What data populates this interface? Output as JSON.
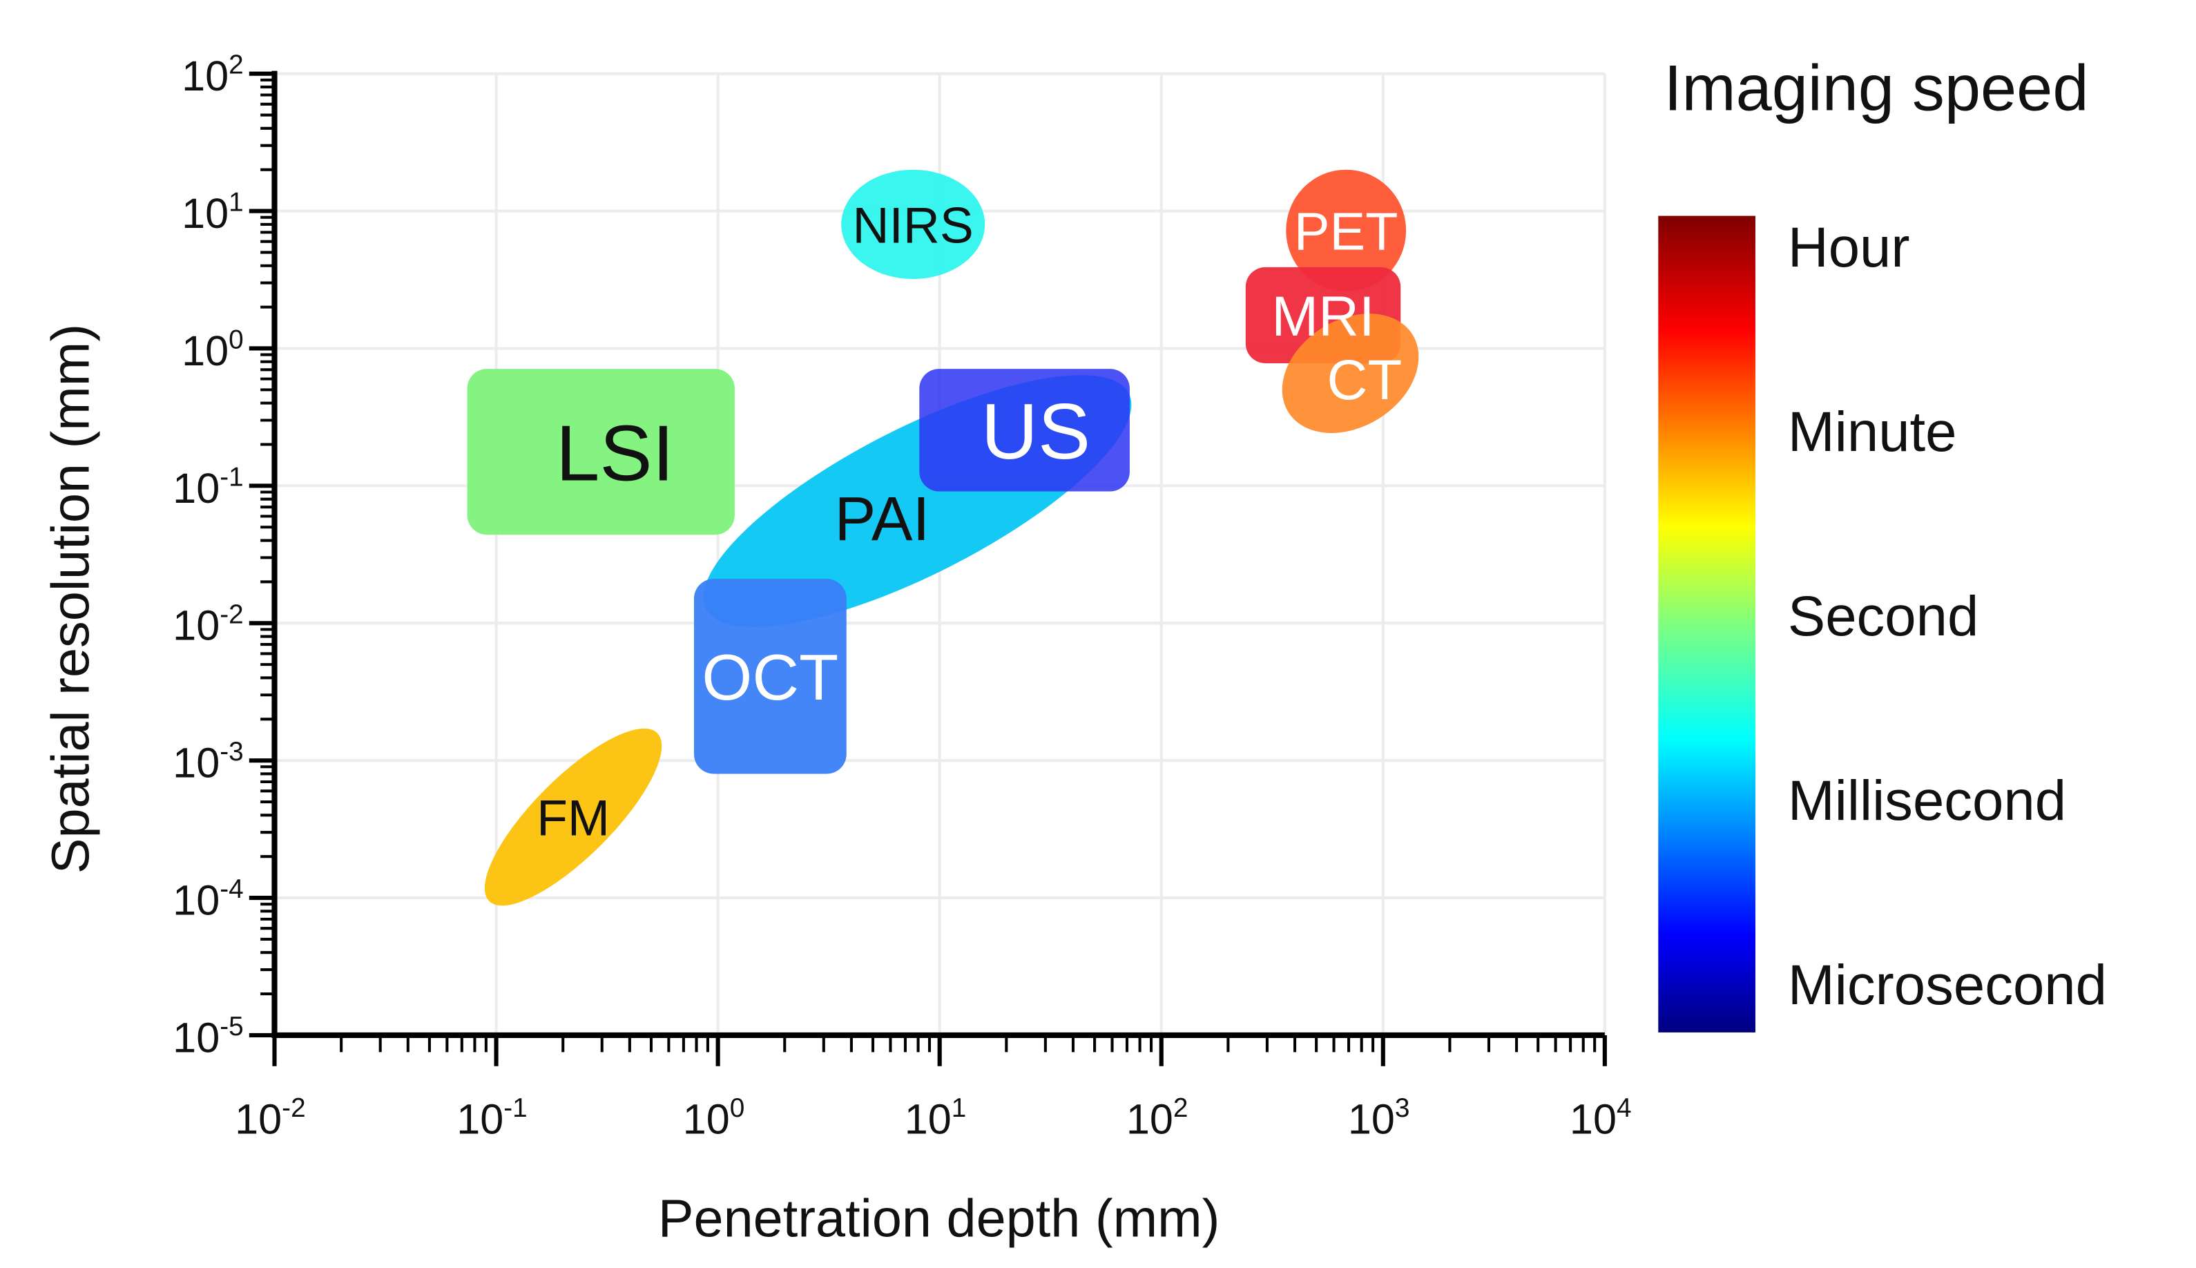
{
  "chart_data": {
    "type": "scatter",
    "title": "",
    "xlabel": "Penetration depth (mm)",
    "ylabel": "Spatial resolution (mm)",
    "xscale": "log",
    "yscale": "log",
    "xlim": [
      0.01,
      10000
    ],
    "ylim": [
      1e-05,
      100
    ],
    "grid": true,
    "x_ticks": [
      {
        "base": "10",
        "exp": "-2"
      },
      {
        "base": "10",
        "exp": "-1"
      },
      {
        "base": "10",
        "exp": "0"
      },
      {
        "base": "10",
        "exp": "1"
      },
      {
        "base": "10",
        "exp": "2"
      },
      {
        "base": "10",
        "exp": "3"
      },
      {
        "base": "10",
        "exp": "4"
      }
    ],
    "y_ticks": [
      {
        "base": "10",
        "exp": "2"
      },
      {
        "base": "10",
        "exp": "1"
      },
      {
        "base": "10",
        "exp": "0"
      },
      {
        "base": "10",
        "exp": "-1"
      },
      {
        "base": "10",
        "exp": "-2"
      },
      {
        "base": "10",
        "exp": "-3"
      },
      {
        "base": "10",
        "exp": "-4"
      },
      {
        "base": "10",
        "exp": "-5"
      }
    ],
    "regions": [
      {
        "label": "LSI",
        "shape": "rect",
        "x_range": [
          0.074,
          1.19
        ],
        "y_range": [
          0.044,
          0.71
        ],
        "speed": "Second",
        "color": "#7ef27a",
        "text_color": "#111111"
      },
      {
        "label": "PAI",
        "shape": "ellipse",
        "x_range": [
          0.9,
          70
        ],
        "y_range": [
          0.012,
          0.5
        ],
        "speed": "Millisecond",
        "color": "#00c4f2",
        "text_color": "#111111"
      },
      {
        "label": "US",
        "shape": "rect",
        "x_range": [
          8.1,
          72
        ],
        "y_range": [
          0.091,
          0.71
        ],
        "speed": "Microsecond",
        "color": "#2e34f2",
        "text_color": "#ffffff"
      },
      {
        "label": "NIRS",
        "shape": "ellipse",
        "x_range": [
          3.6,
          16
        ],
        "y_range": [
          3.2,
          20
        ],
        "speed": "Millisecond",
        "color": "#30f4ee",
        "text_color": "#111111"
      },
      {
        "label": "OCT",
        "shape": "rect",
        "x_range": [
          0.78,
          3.8
        ],
        "y_range": [
          0.0008,
          0.021
        ],
        "speed": "Millisecond",
        "color": "#3a7ef8",
        "text_color": "#ffffff"
      },
      {
        "label": "FM",
        "shape": "ellipse",
        "x_range": [
          0.09,
          0.55
        ],
        "y_range": [
          0.0001,
          0.0015
        ],
        "speed": "Second",
        "color": "#fcbf00",
        "text_color": "#111111"
      },
      {
        "label": "PET",
        "shape": "ellipse",
        "x_range": [
          365,
          1270
        ],
        "y_range": [
          2.6,
          20
        ],
        "speed": "Minute",
        "color": "#ff5533",
        "text_color": "#ffffff"
      },
      {
        "label": "MRI",
        "shape": "rect",
        "x_range": [
          240,
          1200
        ],
        "y_range": [
          0.78,
          3.9
        ],
        "speed": "Hour",
        "color": "#ef2a3c",
        "text_color": "#ffffff"
      },
      {
        "label": "CT",
        "shape": "ellipse",
        "x_range": [
          350,
          1450
        ],
        "y_range": [
          0.31,
          1.4
        ],
        "speed": "Minute",
        "color": "#ff8a2a",
        "text_color": "#ffffff"
      }
    ],
    "legend": {
      "title": "Imaging speed",
      "placement": "right",
      "type": "colorbar",
      "labels": [
        "Hour",
        "Minute",
        "Second",
        "Millisecond",
        "Microsecond"
      ]
    }
  }
}
